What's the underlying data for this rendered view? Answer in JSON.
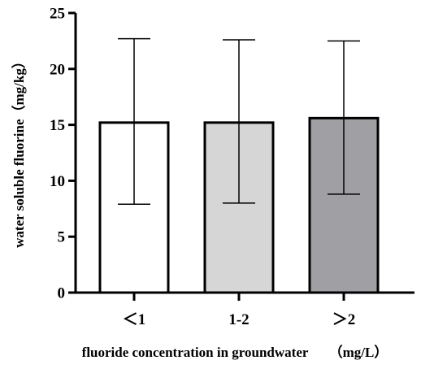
{
  "chart_data": {
    "type": "bar",
    "title": "",
    "xlabel": "fluoride concentration in groundwater　　（mg/L）",
    "ylabel": "water soluble fluorine（mg/kg）",
    "ylim": [
      0,
      25
    ],
    "yticks": [
      "0",
      "5",
      "10",
      "15",
      "20",
      "25"
    ],
    "categories": [
      "＜1",
      "1-2",
      "＞2"
    ],
    "values": [
      15.2,
      15.2,
      15.6
    ],
    "error_low": [
      7.9,
      8.0,
      8.8
    ],
    "error_high": [
      22.7,
      22.6,
      22.5
    ],
    "bar_colors": [
      "#ffffff",
      "#d6d6d6",
      "#a0a0a4"
    ],
    "grid": false,
    "legend": "none"
  }
}
